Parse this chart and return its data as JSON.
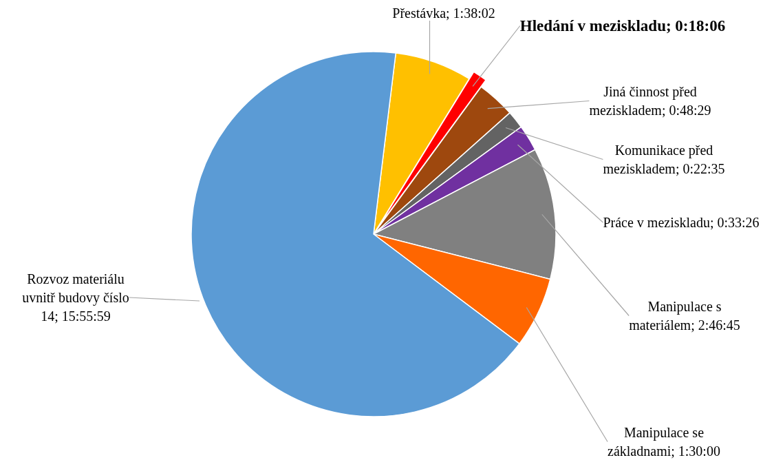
{
  "chart_data": {
    "type": "pie",
    "categories": [
      "Přestávka",
      "Hledání v meziskladu",
      "Jiná činnost před meziskladem",
      "Komunikace před meziskladem",
      "Práce v meziskladu",
      "Manipulace s materiálem",
      "Manipulace se základnami",
      "Rozvoz materiálu uvnitř budovy číslo 14"
    ],
    "values": [
      5882,
      1086,
      2909,
      1355,
      2006,
      10005,
      5400,
      57359
    ],
    "value_labels": [
      "1:38:02",
      "0:18:06",
      "0:48:29",
      "0:22:35",
      "0:33:26",
      "2:46:45",
      "1:30:00",
      "15:55:59"
    ],
    "colors": [
      "#ffc000",
      "#ff0000",
      "#9e480e",
      "#636363",
      "#7030a0",
      "#808080",
      "#ff6600",
      "#5b9bd5"
    ],
    "legend": false
  }
}
